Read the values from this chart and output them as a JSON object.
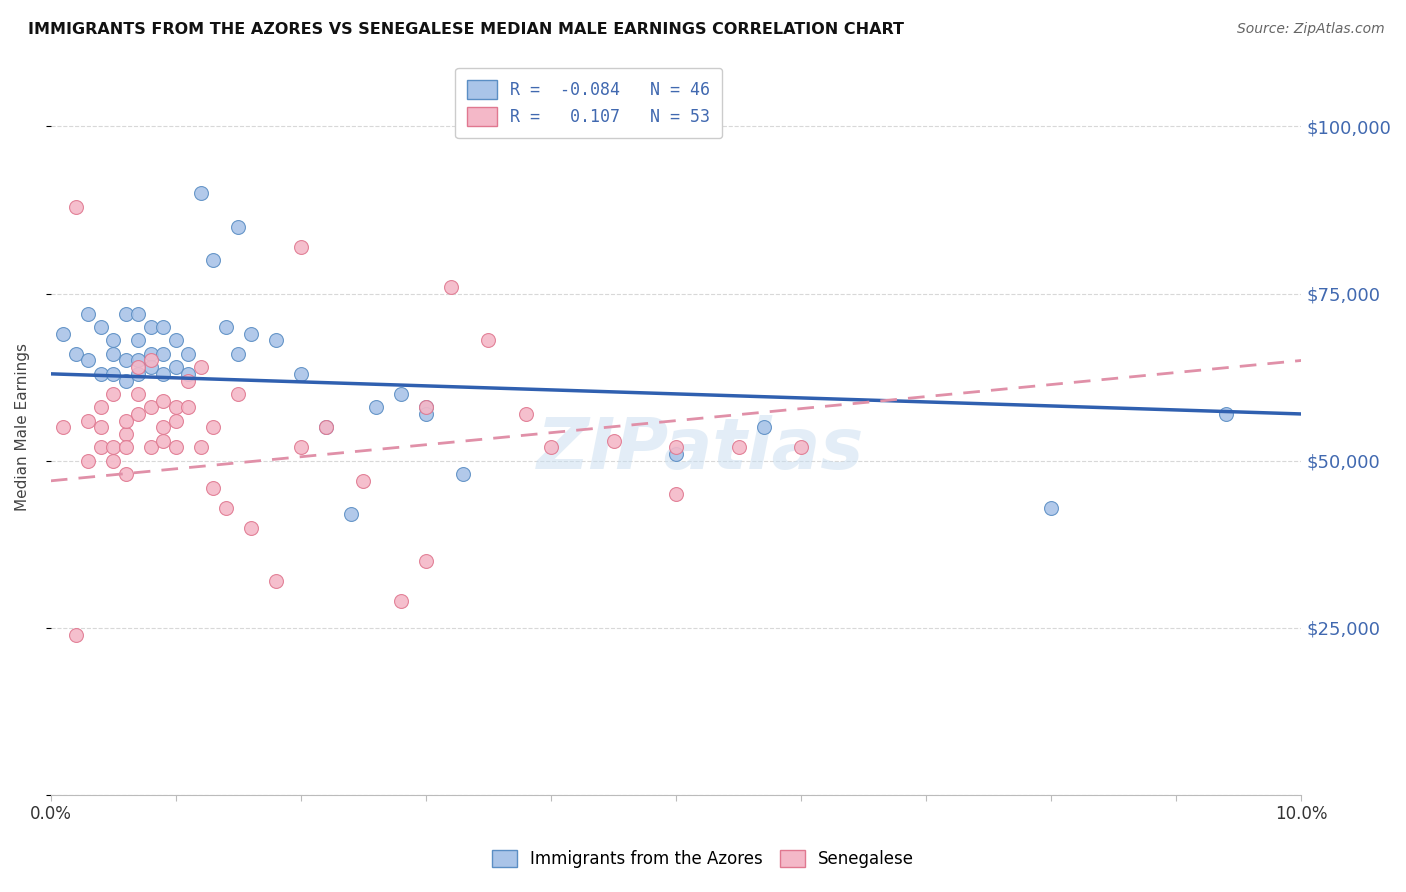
{
  "title": "IMMIGRANTS FROM THE AZORES VS SENEGALESE MEDIAN MALE EARNINGS CORRELATION CHART",
  "source": "Source: ZipAtlas.com",
  "ylabel": "Median Male Earnings",
  "xlim": [
    0.0,
    0.1
  ],
  "ylim": [
    0,
    110000
  ],
  "yticks": [
    0,
    25000,
    50000,
    75000,
    100000
  ],
  "ytick_labels": [
    "",
    "$25,000",
    "$50,000",
    "$75,000",
    "$100,000"
  ],
  "xticks": [
    0.0,
    0.01,
    0.02,
    0.03,
    0.04,
    0.05,
    0.06,
    0.07,
    0.08,
    0.09,
    0.1
  ],
  "azores_R": -0.084,
  "azores_N": 46,
  "senegalese_R": 0.107,
  "senegalese_N": 53,
  "color_azores_fill": "#aac4e8",
  "color_azores_edge": "#5b8ec4",
  "color_senegalese_fill": "#f4b8c8",
  "color_senegalese_edge": "#e07890",
  "color_line_azores": "#3060b0",
  "color_line_senegalese": "#e090a8",
  "color_right_axis": "#4169b0",
  "background_color": "#ffffff",
  "grid_color": "#d8d8d8",
  "azores_x": [
    0.001,
    0.002,
    0.003,
    0.003,
    0.004,
    0.004,
    0.005,
    0.005,
    0.005,
    0.006,
    0.006,
    0.006,
    0.007,
    0.007,
    0.007,
    0.007,
    0.008,
    0.008,
    0.008,
    0.009,
    0.009,
    0.009,
    0.01,
    0.01,
    0.011,
    0.011,
    0.012,
    0.013,
    0.014,
    0.015,
    0.015,
    0.016,
    0.018,
    0.02,
    0.022,
    0.024,
    0.026,
    0.028,
    0.03,
    0.033,
    0.038,
    0.05,
    0.057,
    0.08,
    0.094,
    0.03
  ],
  "azores_y": [
    69000,
    66000,
    72000,
    65000,
    70000,
    63000,
    66000,
    63000,
    68000,
    72000,
    65000,
    62000,
    68000,
    65000,
    63000,
    72000,
    70000,
    66000,
    64000,
    70000,
    66000,
    63000,
    68000,
    64000,
    66000,
    63000,
    90000,
    80000,
    70000,
    66000,
    85000,
    69000,
    68000,
    63000,
    55000,
    42000,
    58000,
    60000,
    58000,
    48000,
    100000,
    51000,
    55000,
    43000,
    57000,
    57000
  ],
  "senegalese_x": [
    0.001,
    0.002,
    0.003,
    0.003,
    0.004,
    0.004,
    0.004,
    0.005,
    0.005,
    0.005,
    0.006,
    0.006,
    0.006,
    0.006,
    0.007,
    0.007,
    0.007,
    0.008,
    0.008,
    0.008,
    0.009,
    0.009,
    0.009,
    0.01,
    0.01,
    0.01,
    0.011,
    0.011,
    0.012,
    0.012,
    0.013,
    0.013,
    0.014,
    0.015,
    0.016,
    0.018,
    0.02,
    0.022,
    0.025,
    0.028,
    0.03,
    0.035,
    0.038,
    0.04,
    0.045,
    0.05,
    0.055,
    0.06,
    0.02,
    0.03,
    0.032,
    0.05,
    0.002
  ],
  "senegalese_y": [
    55000,
    24000,
    50000,
    56000,
    52000,
    55000,
    58000,
    50000,
    52000,
    60000,
    54000,
    48000,
    52000,
    56000,
    60000,
    64000,
    57000,
    65000,
    58000,
    52000,
    55000,
    59000,
    53000,
    56000,
    52000,
    58000,
    62000,
    58000,
    52000,
    64000,
    46000,
    55000,
    43000,
    60000,
    40000,
    32000,
    52000,
    55000,
    47000,
    29000,
    58000,
    68000,
    57000,
    52000,
    53000,
    52000,
    52000,
    52000,
    82000,
    35000,
    76000,
    45000,
    88000
  ],
  "trend_azores_x0": 0.0,
  "trend_azores_y0": 63000,
  "trend_azores_x1": 0.1,
  "trend_azores_y1": 57000,
  "trend_senegalese_x0": 0.0,
  "trend_senegalese_y0": 47000,
  "trend_senegalese_x1": 0.1,
  "trend_senegalese_y1": 65000
}
